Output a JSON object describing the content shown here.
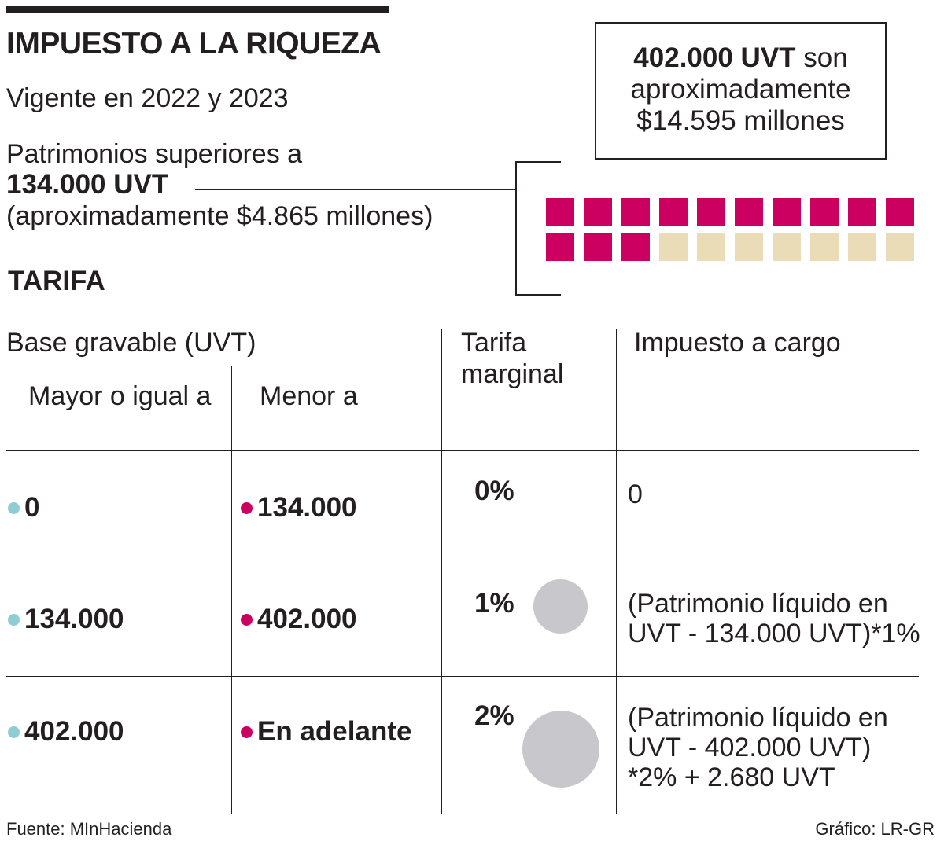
{
  "header": {
    "title": "IMPUESTO A LA RIQUEZA",
    "subtitle": "Vigente en 2022 y 2023",
    "threshold_line1": "Patrimonios superiores a",
    "threshold_line2": "134.000 UVT",
    "threshold_line3": "(aproximadamente $4.865 millones)"
  },
  "note_box": {
    "bold": "402.000 UVT",
    "rest_line1": " son",
    "line2": "aproximadamente",
    "line3": "$14.595 millones"
  },
  "table": {
    "heading": "TARIFA",
    "col_base": "Base gravable (UVT)",
    "col_min": "Mayor o igual a",
    "col_max": "Menor a",
    "col_rate_line1": "Tarifa",
    "col_rate_line2": "marginal",
    "col_tax": "Impuesto a cargo",
    "rows": [
      {
        "min": "0",
        "max": "134.000",
        "rate": "0%",
        "tax_lines": [
          "0"
        ]
      },
      {
        "min": "134.000",
        "max": "402.000",
        "rate": "1%",
        "tax_lines": [
          "(Patrimonio líquido en",
          "UVT - 134.000 UVT)*1%"
        ]
      },
      {
        "min": "402.000",
        "max": "En adelante",
        "rate": "2%",
        "tax_lines": [
          "(Patrimonio líquido en",
          "UVT - 402.000 UVT)",
          "*2% + 2.680 UVT"
        ]
      }
    ]
  },
  "footer": {
    "source": "Fuente: MInHacienda",
    "credit": "Gráfico: LR-GR"
  },
  "colors": {
    "filled": "#cc0060",
    "empty": "#eadcb6",
    "dot_min": "#8fcdd5",
    "dot_max": "#cc0060",
    "circle": "#c8c8cc"
  },
  "chart_data": [
    {
      "type": "waffle",
      "title": "",
      "total_squares": 20,
      "filled_squares": 13,
      "categories": [
        "Filled",
        "Empty"
      ],
      "values": [
        13,
        7
      ]
    },
    {
      "type": "bubble",
      "title": "Tarifa marginal",
      "categories": [
        "0%",
        "1%",
        "2%"
      ],
      "values": [
        0,
        1,
        2
      ]
    }
  ]
}
